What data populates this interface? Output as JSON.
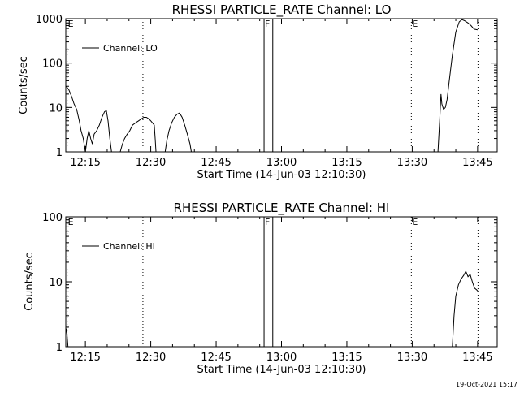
{
  "footer": {
    "timestamp": "19-Oct-2021 15:17"
  },
  "chart_data": [
    {
      "type": "line",
      "title": "RHESSI PARTICLE_RATE Channel: LO",
      "xlabel": "Start Time (14-Jun-03 12:10:30)",
      "ylabel": "Counts/sec",
      "x_unit": "minutes since 12:00 UT",
      "xlim": [
        10.5,
        109.5
      ],
      "ylim": [
        1,
        1000
      ],
      "yscale": "log",
      "xticks": [
        {
          "x": 15,
          "label": "12:15"
        },
        {
          "x": 30,
          "label": "12:30"
        },
        {
          "x": 45,
          "label": "12:45"
        },
        {
          "x": 60,
          "label": "13:00"
        },
        {
          "x": 75,
          "label": "13:15"
        },
        {
          "x": 90,
          "label": "13:30"
        },
        {
          "x": 105,
          "label": "13:45"
        }
      ],
      "yticks": [
        {
          "y": 1,
          "label": "1"
        },
        {
          "y": 10,
          "label": "10"
        },
        {
          "y": 100,
          "label": "100"
        },
        {
          "y": 1000,
          "label": "1000"
        }
      ],
      "legend": {
        "label": "Channel: LO",
        "position": "top-left"
      },
      "flags": [
        {
          "x": 10.8,
          "label": "E",
          "style": "dotted"
        },
        {
          "x": 28.2,
          "label": "",
          "style": "dotted"
        },
        {
          "x": 56.0,
          "label": "F",
          "style": "solid"
        },
        {
          "x": 58.0,
          "label": "",
          "style": "solid"
        },
        {
          "x": 89.8,
          "label": "E",
          "style": "dotted"
        },
        {
          "x": 105.1,
          "label": "",
          "style": "dotted"
        }
      ],
      "series": [
        {
          "name": "Channel: LO",
          "segments": [
            [
              [
                10.6,
                30
              ],
              [
                11.2,
                25
              ],
              [
                11.8,
                18
              ],
              [
                12.4,
                12
              ],
              [
                13.0,
                9
              ],
              [
                13.6,
                5
              ],
              [
                14.0,
                3
              ],
              [
                14.5,
                2
              ],
              [
                15.0,
                1
              ],
              [
                15.4,
                2
              ],
              [
                15.8,
                3
              ],
              [
                16.2,
                2
              ],
              [
                16.6,
                1.5
              ],
              [
                17.0,
                2.5
              ],
              [
                17.6,
                3
              ],
              [
                18.2,
                4
              ],
              [
                18.8,
                6
              ],
              [
                19.4,
                8
              ],
              [
                19.8,
                8.5
              ],
              [
                20.2,
                5
              ],
              [
                20.6,
                2
              ],
              [
                21.0,
                1
              ]
            ],
            [
              [
                23.0,
                1
              ],
              [
                23.5,
                1.5
              ],
              [
                24.0,
                2
              ],
              [
                24.6,
                2.5
              ],
              [
                25.2,
                3
              ],
              [
                25.8,
                4
              ],
              [
                26.5,
                4.5
              ],
              [
                27.2,
                5
              ],
              [
                27.8,
                5.5
              ],
              [
                28.4,
                6
              ],
              [
                29.0,
                6
              ],
              [
                29.6,
                5.5
              ],
              [
                30.0,
                5
              ],
              [
                30.4,
                4.5
              ],
              [
                30.8,
                4
              ],
              [
                31.0,
                2
              ],
              [
                31.2,
                1
              ]
            ],
            [
              [
                33.3,
                1
              ],
              [
                33.7,
                1.8
              ],
              [
                34.2,
                3
              ],
              [
                34.8,
                4.5
              ],
              [
                35.4,
                6
              ],
              [
                36.0,
                7
              ],
              [
                36.6,
                7.5
              ],
              [
                37.2,
                6
              ],
              [
                37.8,
                4
              ],
              [
                38.4,
                2.5
              ],
              [
                39.0,
                1.5
              ],
              [
                39.3,
                1
              ]
            ],
            [
              [
                95.9,
                1
              ],
              [
                96.3,
                5
              ],
              [
                96.6,
                20
              ],
              [
                96.8,
                12
              ],
              [
                97.2,
                9
              ],
              [
                97.6,
                10
              ],
              [
                98.0,
                15
              ],
              [
                98.5,
                40
              ],
              [
                99.2,
                150
              ],
              [
                100.0,
                500
              ],
              [
                100.8,
                850
              ],
              [
                101.4,
                950
              ],
              [
                102.0,
                900
              ],
              [
                102.8,
                800
              ],
              [
                103.5,
                700
              ],
              [
                104.2,
                580
              ],
              [
                105.0,
                560
              ]
            ]
          ]
        }
      ]
    },
    {
      "type": "line",
      "title": "RHESSI PARTICLE_RATE Channel: HI",
      "xlabel": "Start Time (14-Jun-03 12:10:30)",
      "ylabel": "Counts/sec",
      "x_unit": "minutes since 12:00 UT",
      "xlim": [
        10.5,
        109.5
      ],
      "ylim": [
        1,
        100
      ],
      "yscale": "log",
      "xticks": [
        {
          "x": 15,
          "label": "12:15"
        },
        {
          "x": 30,
          "label": "12:30"
        },
        {
          "x": 45,
          "label": "12:45"
        },
        {
          "x": 60,
          "label": "13:00"
        },
        {
          "x": 75,
          "label": "13:15"
        },
        {
          "x": 90,
          "label": "13:30"
        },
        {
          "x": 105,
          "label": "13:45"
        }
      ],
      "yticks": [
        {
          "y": 1,
          "label": "1"
        },
        {
          "y": 10,
          "label": "10"
        },
        {
          "y": 100,
          "label": "100"
        }
      ],
      "legend": {
        "label": "Channel: HI",
        "position": "top-left"
      },
      "flags": [
        {
          "x": 10.8,
          "label": "E",
          "style": "dotted"
        },
        {
          "x": 28.2,
          "label": "",
          "style": "dotted"
        },
        {
          "x": 56.0,
          "label": "F",
          "style": "solid"
        },
        {
          "x": 58.0,
          "label": "",
          "style": "solid"
        },
        {
          "x": 89.8,
          "label": "E",
          "style": "dotted"
        },
        {
          "x": 105.1,
          "label": "",
          "style": "dotted"
        }
      ],
      "series": [
        {
          "name": "Channel: HI",
          "segments": [
            [
              [
                10.6,
                1.9
              ],
              [
                10.8,
                1.5
              ],
              [
                11.0,
                1
              ]
            ],
            [
              [
                99.2,
                1
              ],
              [
                99.6,
                3
              ],
              [
                100.0,
                6
              ],
              [
                100.6,
                9
              ],
              [
                101.2,
                11
              ],
              [
                101.8,
                12.5
              ],
              [
                102.3,
                14.5
              ],
              [
                102.8,
                12
              ],
              [
                103.3,
                13
              ],
              [
                103.8,
                10
              ],
              [
                104.3,
                8
              ],
              [
                104.8,
                7.5
              ],
              [
                105.2,
                7
              ]
            ]
          ]
        }
      ]
    }
  ]
}
